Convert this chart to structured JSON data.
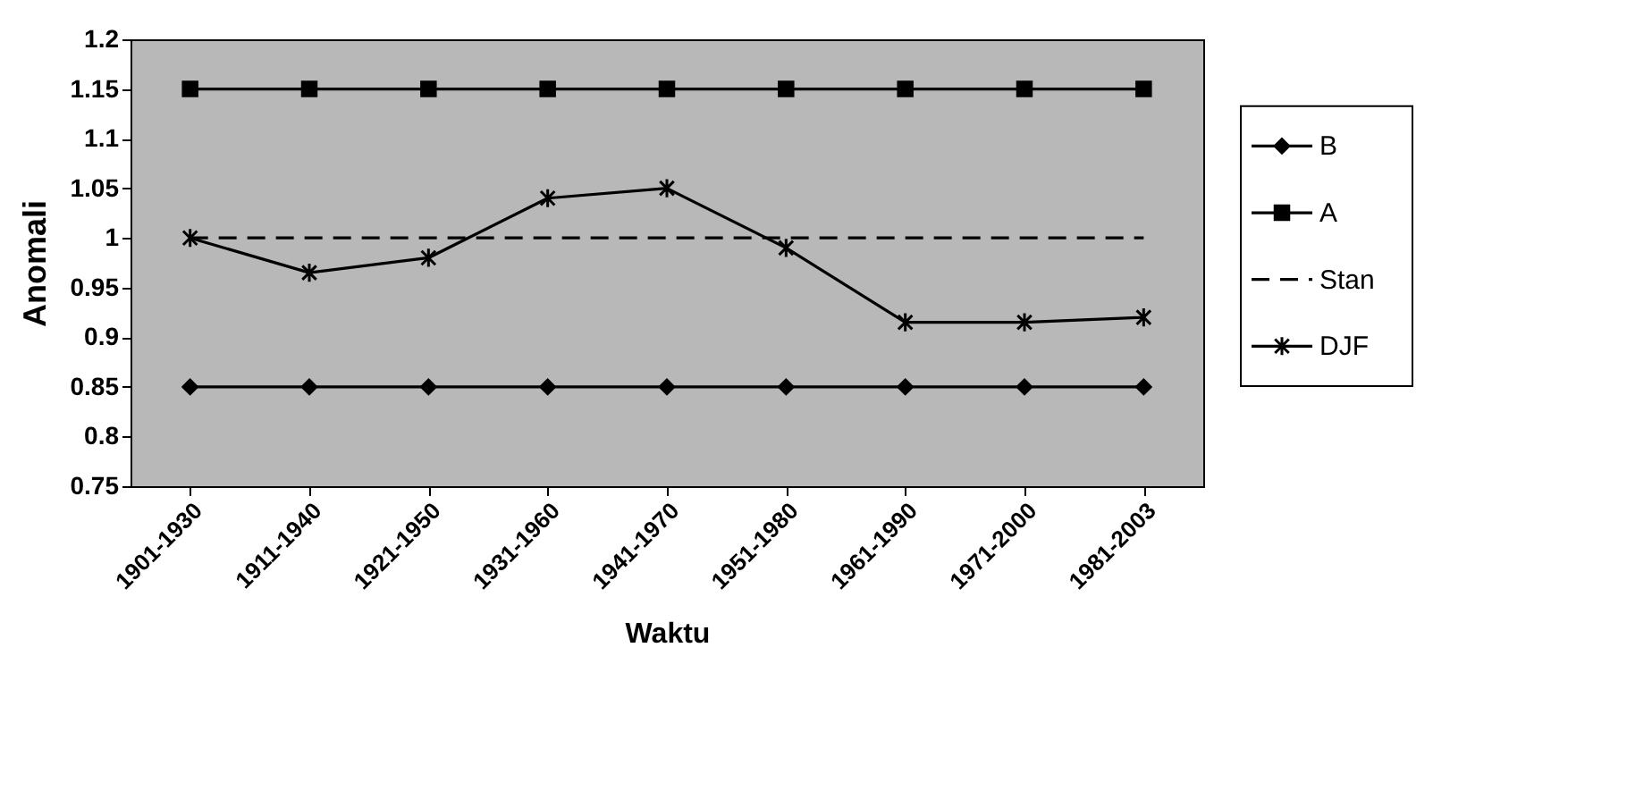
{
  "chart_data": {
    "type": "line",
    "xlabel": "Waktu",
    "ylabel": "Anomali",
    "categories": [
      "1901-1930",
      "1911-1940",
      "1921-1950",
      "1931-1960",
      "1941-1970",
      "1951-1980",
      "1961-1990",
      "1971-2000",
      "1981-2003"
    ],
    "series": [
      {
        "name": "B",
        "color": "#000000",
        "marker": "diamond",
        "line_style": "solid",
        "values": [
          0.85,
          0.85,
          0.85,
          0.85,
          0.85,
          0.85,
          0.85,
          0.85,
          0.85
        ]
      },
      {
        "name": "A",
        "color": "#000000",
        "marker": "square",
        "line_style": "solid",
        "values": [
          1.15,
          1.15,
          1.15,
          1.15,
          1.15,
          1.15,
          1.15,
          1.15,
          1.15
        ]
      },
      {
        "name": "Stan",
        "color": "#000000",
        "marker": "none",
        "line_style": "dashed",
        "values": [
          1,
          1,
          1,
          1,
          1,
          1,
          1,
          1,
          1
        ]
      },
      {
        "name": "DJF",
        "color": "#000000",
        "marker": "cross",
        "line_style": "solid",
        "values": [
          1,
          0.965,
          0.98,
          1.04,
          1.05,
          0.99,
          0.915,
          0.915,
          0.92
        ]
      }
    ],
    "ylim": [
      0.75,
      1.2
    ],
    "yticks": [
      0.75,
      0.8,
      0.85,
      0.9,
      0.95,
      1,
      1.05,
      1.1,
      1.15,
      1.2
    ],
    "grid": false,
    "legend": "right"
  }
}
